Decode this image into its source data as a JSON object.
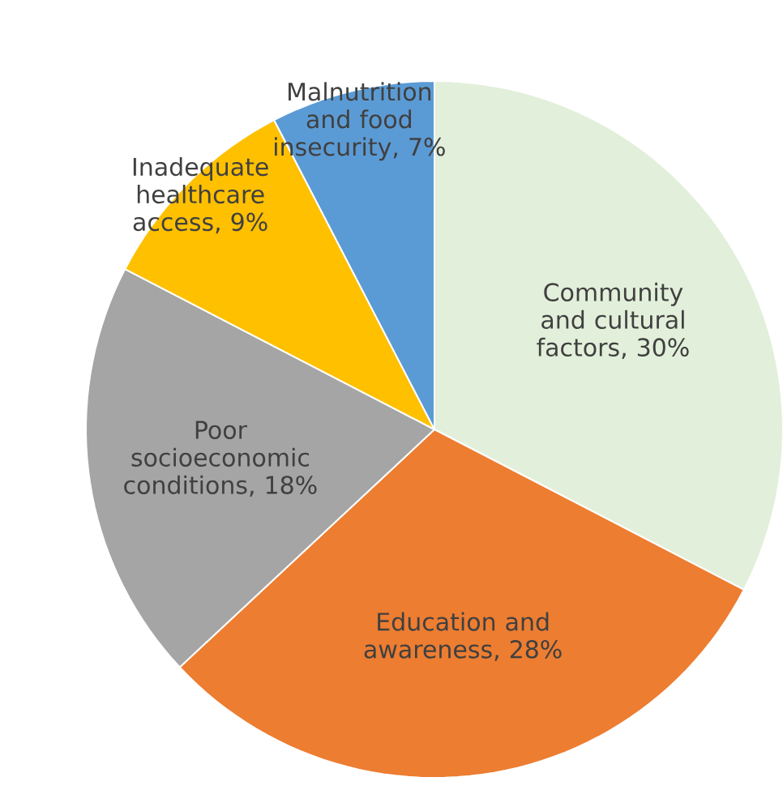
{
  "chart_data": {
    "type": "pie",
    "categories": [
      "Community and cultural factors, 30%",
      "Education and awareness, 28%",
      "Poor socioeconomic conditions, 18%",
      "Inadequate healthcare access, 9%",
      "Malnutrition and food insecurity, 7%"
    ],
    "values": [
      30,
      28,
      18,
      9,
      7
    ],
    "colors": [
      "#e2efda",
      "#ed7d31",
      "#a5a5a5",
      "#ffc000",
      "#5b9bd5"
    ]
  }
}
